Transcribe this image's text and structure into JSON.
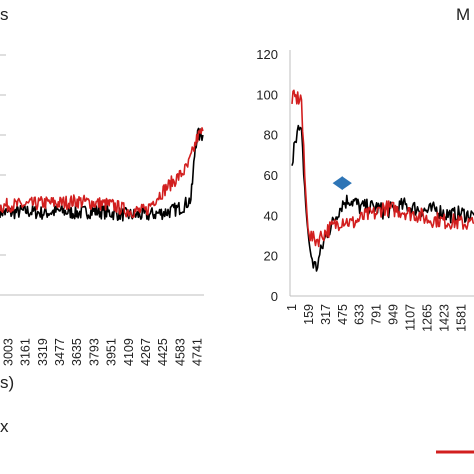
{
  "chart_data": [
    {
      "type": "line",
      "title": "",
      "title_fragment": "s",
      "xlabel": "",
      "xlabel_fragment": "s)",
      "ylabel": "",
      "grid": false,
      "x_categories": [
        "3003",
        "3161",
        "3319",
        "3477",
        "3635",
        "3793",
        "3951",
        "4109",
        "4267",
        "4425",
        "4583",
        "4741"
      ],
      "x_start": 2925,
      "x_end": 4800,
      "ylim": [
        0,
        120
      ],
      "legend_fragment": "x",
      "series": [
        {
          "color": "#000000",
          "points": [
            [
              2925,
              42
            ],
            [
              3003,
              41
            ],
            [
              3161,
              42
            ],
            [
              3319,
              41
            ],
            [
              3477,
              42
            ],
            [
              3635,
              41
            ],
            [
              3793,
              42
            ],
            [
              3951,
              41
            ],
            [
              4109,
              40
            ],
            [
              4267,
              40
            ],
            [
              4400,
              41
            ],
            [
              4500,
              42
            ],
            [
              4600,
              44
            ],
            [
              4680,
              48
            ],
            [
              4700,
              60
            ],
            [
              4720,
              75
            ],
            [
              4741,
              80
            ],
            [
              4790,
              80
            ]
          ]
        },
        {
          "color": "#d21f1f",
          "points": [
            [
              2925,
              44
            ],
            [
              3003,
              45
            ],
            [
              3161,
              45
            ],
            [
              3319,
              46
            ],
            [
              3477,
              46
            ],
            [
              3635,
              47
            ],
            [
              3793,
              46
            ],
            [
              3951,
              45
            ],
            [
              4109,
              42
            ],
            [
              4267,
              42
            ],
            [
              4350,
              48
            ],
            [
              4425,
              52
            ],
            [
              4500,
              56
            ],
            [
              4583,
              60
            ],
            [
              4650,
              64
            ],
            [
              4700,
              72
            ],
            [
              4741,
              79
            ],
            [
              4790,
              82
            ]
          ]
        }
      ]
    },
    {
      "type": "line",
      "title": "",
      "title_fragment": "M",
      "xlabel": "",
      "ylabel": "",
      "grid": false,
      "y_ticks": [
        "0",
        "20",
        "40",
        "60",
        "80",
        "100",
        "120"
      ],
      "ylim": [
        0,
        120
      ],
      "x_categories": [
        "1",
        "159",
        "317",
        "475",
        "633",
        "791",
        "949",
        "1107",
        "1265",
        "1423",
        "1581"
      ],
      "x_start": 1,
      "x_end": 1700,
      "legend_fragment": "",
      "annotation": "double-headed-arrow",
      "annotation_color": "#2e75b6",
      "annotation_range": [
        380,
        560
      ],
      "annotation_y": 56,
      "series": [
        {
          "color": "#000000",
          "points": [
            [
              1,
              62
            ],
            [
              20,
              78
            ],
            [
              60,
              82
            ],
            [
              90,
              80
            ],
            [
              130,
              45
            ],
            [
              160,
              25
            ],
            [
              200,
              16
            ],
            [
              230,
              14
            ],
            [
              260,
              20
            ],
            [
              317,
              30
            ],
            [
              380,
              36
            ],
            [
              430,
              42
            ],
            [
              475,
              46
            ],
            [
              540,
              48
            ],
            [
              600,
              46
            ],
            [
              633,
              44
            ],
            [
              700,
              44
            ],
            [
              791,
              44
            ],
            [
              850,
              42
            ],
            [
              949,
              43
            ],
            [
              1050,
              45
            ],
            [
              1107,
              44
            ],
            [
              1200,
              43
            ],
            [
              1265,
              42
            ],
            [
              1350,
              43
            ],
            [
              1423,
              41
            ],
            [
              1500,
              40
            ],
            [
              1581,
              41
            ],
            [
              1650,
              40
            ],
            [
              1700,
              40
            ]
          ]
        },
        {
          "color": "#d21f1f",
          "points": [
            [
              1,
              98
            ],
            [
              90,
              98
            ],
            [
              100,
              82
            ],
            [
              120,
              60
            ],
            [
              140,
              40
            ],
            [
              170,
              30
            ],
            [
              200,
              28
            ],
            [
              240,
              28
            ],
            [
              280,
              30
            ],
            [
              317,
              32
            ],
            [
              400,
              35
            ],
            [
              475,
              38
            ],
            [
              560,
              36
            ],
            [
              633,
              38
            ],
            [
              700,
              40
            ],
            [
              791,
              41
            ],
            [
              850,
              44
            ],
            [
              949,
              43
            ],
            [
              1050,
              42
            ],
            [
              1107,
              41
            ],
            [
              1200,
              40
            ],
            [
              1265,
              38
            ],
            [
              1350,
              38
            ],
            [
              1423,
              37
            ],
            [
              1500,
              37
            ],
            [
              1581,
              36
            ],
            [
              1650,
              36
            ],
            [
              1700,
              36
            ]
          ]
        }
      ]
    }
  ]
}
